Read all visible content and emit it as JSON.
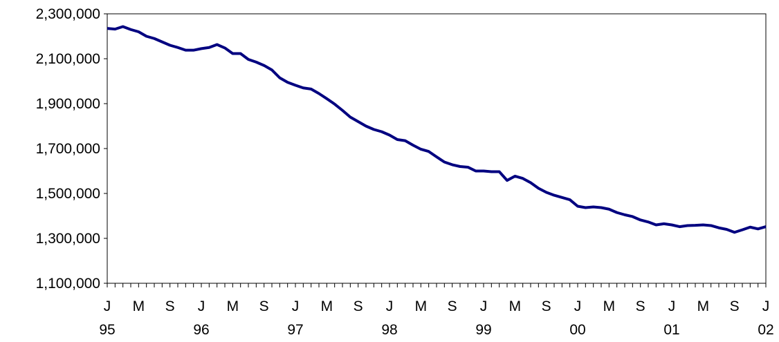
{
  "chart_data": {
    "type": "line",
    "categories": [
      "J",
      null,
      null,
      null,
      "M",
      null,
      null,
      null,
      "S",
      null,
      null,
      null,
      "J",
      null,
      null,
      null,
      "M",
      null,
      null,
      null,
      "S",
      null,
      null,
      null,
      "J",
      null,
      null,
      null,
      "M",
      null,
      null,
      null,
      "S",
      null,
      null,
      null,
      "J",
      null,
      null,
      null,
      "M",
      null,
      null,
      null,
      "S",
      null,
      null,
      null,
      "J",
      null,
      null,
      null,
      "M",
      null,
      null,
      null,
      "S",
      null,
      null,
      null,
      "J",
      null,
      null,
      null,
      "M",
      null,
      null,
      null,
      "S",
      null,
      null,
      null,
      "J",
      null,
      null,
      null,
      "M",
      null,
      null,
      null,
      "S",
      null,
      null,
      null,
      "J"
    ],
    "category_years": [
      "95",
      null,
      null,
      null,
      null,
      null,
      null,
      null,
      null,
      null,
      null,
      null,
      "96",
      null,
      null,
      null,
      null,
      null,
      null,
      null,
      null,
      null,
      null,
      null,
      "97",
      null,
      null,
      null,
      null,
      null,
      null,
      null,
      null,
      null,
      null,
      null,
      "98",
      null,
      null,
      null,
      null,
      null,
      null,
      null,
      null,
      null,
      null,
      null,
      "99",
      null,
      null,
      null,
      null,
      null,
      null,
      null,
      null,
      null,
      null,
      null,
      "00",
      null,
      null,
      null,
      null,
      null,
      null,
      null,
      null,
      null,
      null,
      null,
      "01",
      null,
      null,
      null,
      null,
      null,
      null,
      null,
      null,
      null,
      null,
      null,
      "02"
    ],
    "series": [
      {
        "color": "#000080",
        "values": [
          2235000,
          2232000,
          2243000,
          2230000,
          2220000,
          2200000,
          2190000,
          2175000,
          2160000,
          2150000,
          2138000,
          2138000,
          2145000,
          2150000,
          2163000,
          2148000,
          2123000,
          2123000,
          2097000,
          2085000,
          2070000,
          2050000,
          2015000,
          1995000,
          1982000,
          1970000,
          1965000,
          1945000,
          1922000,
          1898000,
          1870000,
          1840000,
          1820000,
          1800000,
          1785000,
          1775000,
          1760000,
          1740000,
          1735000,
          1715000,
          1697000,
          1687000,
          1663000,
          1640000,
          1628000,
          1620000,
          1617000,
          1600000,
          1600000,
          1597000,
          1597000,
          1558000,
          1577000,
          1567000,
          1548000,
          1523000,
          1505000,
          1492000,
          1482000,
          1472000,
          1443000,
          1437000,
          1440000,
          1437000,
          1430000,
          1415000,
          1405000,
          1397000,
          1382000,
          1373000,
          1360000,
          1365000,
          1360000,
          1352000,
          1357000,
          1358000,
          1360000,
          1357000,
          1347000,
          1340000,
          1327000,
          1338000,
          1350000,
          1342000,
          1352000
        ]
      }
    ],
    "ylim": [
      1100000,
      2300000
    ],
    "yticks": [
      {
        "value": 1100000,
        "label": "1,100,000"
      },
      {
        "value": 1300000,
        "label": "1,300,000"
      },
      {
        "value": 1500000,
        "label": "1,500,000"
      },
      {
        "value": 1700000,
        "label": "1,700,000"
      },
      {
        "value": 1900000,
        "label": "1,900,000"
      },
      {
        "value": 2100000,
        "label": "2,100,000"
      },
      {
        "value": 2300000,
        "label": "2,300,000"
      }
    ],
    "grid": false
  }
}
